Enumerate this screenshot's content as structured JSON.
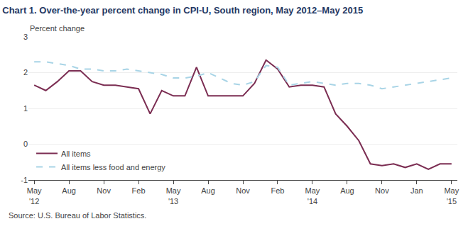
{
  "chart_data": {
    "type": "line",
    "title": "Chart 1. Over-the-year percent change in CPI-U, South region, May 2012–May 2015",
    "y_label": "Percent change",
    "annotations": [
      "Source: U.S. Bureau of Labor Statistics."
    ],
    "categories": [
      "May\n'12",
      null,
      null,
      "Aug",
      null,
      null,
      "Nov",
      null,
      null,
      "Feb",
      null,
      null,
      "May\n'13",
      null,
      null,
      "Aug",
      null,
      null,
      "Nov",
      null,
      null,
      "Feb",
      null,
      null,
      "May\n'14",
      null,
      null,
      "Aug",
      null,
      null,
      "Nov",
      null,
      null,
      "Jan",
      null,
      null,
      "May\n'15"
    ],
    "series": [
      {
        "name": "All items",
        "color": "#7b2d52",
        "line_style": "solid",
        "values": [
          1.65,
          1.5,
          1.75,
          2.05,
          2.05,
          1.75,
          1.65,
          1.65,
          1.6,
          1.55,
          0.85,
          1.5,
          1.35,
          1.35,
          2.15,
          1.35,
          1.35,
          1.35,
          1.35,
          1.7,
          2.35,
          2.1,
          1.6,
          1.65,
          1.65,
          1.6,
          0.85,
          0.5,
          0.1,
          -0.55,
          -0.6,
          -0.55,
          -0.65,
          -0.55,
          -0.7,
          -0.55,
          -0.55
        ]
      },
      {
        "name": "All items less food and energy",
        "color": "#a8d4e6",
        "line_style": "dashed",
        "values": [
          2.3,
          2.3,
          2.25,
          2.2,
          2.1,
          2.1,
          2.05,
          2.05,
          2.1,
          2.05,
          2.0,
          1.95,
          1.85,
          1.85,
          1.9,
          2.0,
          1.85,
          1.7,
          1.65,
          1.75,
          2.2,
          2.15,
          1.65,
          1.7,
          1.75,
          1.7,
          1.65,
          1.7,
          1.7,
          1.65,
          1.55,
          1.6,
          1.65,
          1.7,
          1.75,
          1.8,
          1.85
        ]
      }
    ],
    "ylim": [
      -1,
      3
    ],
    "yticks": [
      -1,
      0,
      1,
      2,
      3
    ],
    "grid": true,
    "legend": "lower left"
  }
}
